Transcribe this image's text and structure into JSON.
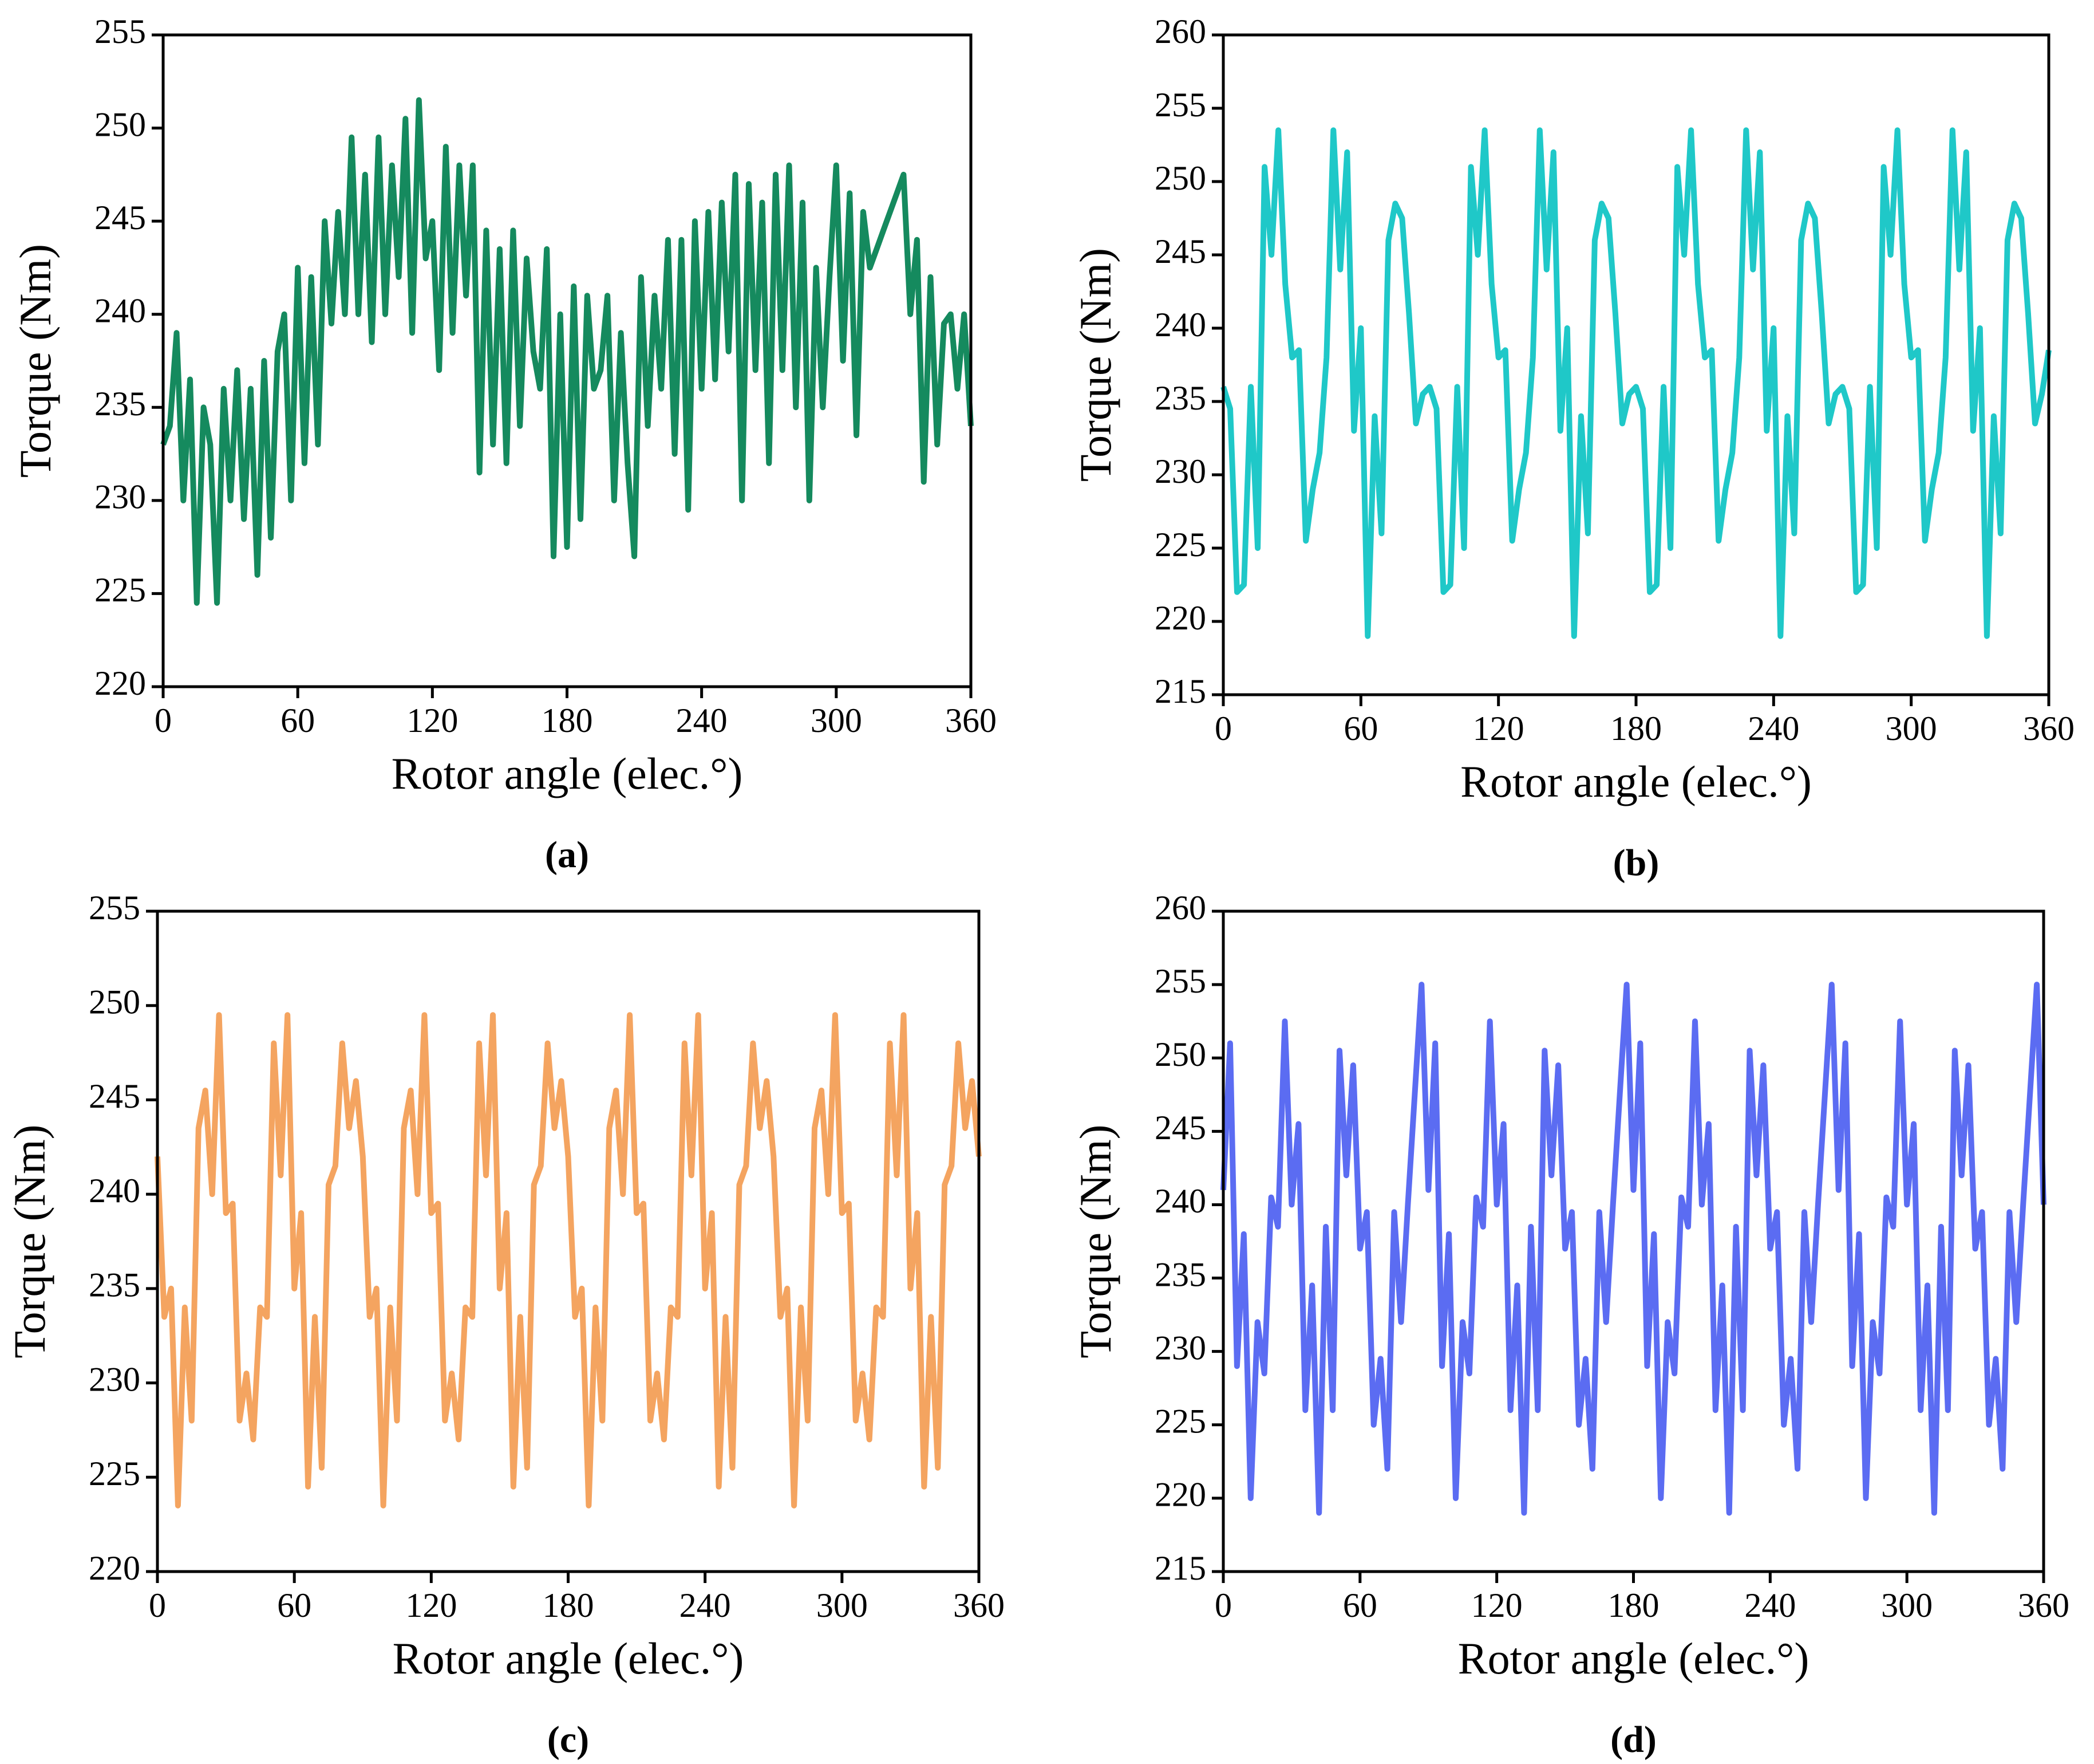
{
  "chart_data": [
    {
      "type": "line",
      "caption": "(a)",
      "xlabel": "Rotor angle (elec.°)",
      "ylabel": "Torque (Nm)",
      "xlim": [
        0,
        360
      ],
      "xticks": [
        0,
        60,
        120,
        180,
        240,
        300,
        360
      ],
      "ylim": [
        220,
        255
      ],
      "yticks": [
        220,
        225,
        230,
        235,
        240,
        245,
        250,
        255
      ],
      "x": [
        0,
        3,
        6,
        9,
        12,
        15,
        18,
        21,
        24,
        27,
        30,
        33,
        36,
        39,
        42,
        45,
        48,
        51,
        54,
        57,
        60,
        63,
        66,
        69,
        72,
        75,
        78,
        81,
        84,
        87,
        90,
        93,
        96,
        99,
        102,
        105,
        108,
        111,
        114,
        117,
        120,
        123,
        126,
        129,
        132,
        135,
        138,
        141,
        144,
        147,
        150,
        153,
        156,
        159,
        162,
        165,
        168,
        171,
        174,
        177,
        180,
        183,
        186,
        189,
        192,
        195,
        198,
        201,
        204,
        207,
        210,
        213,
        216,
        219,
        222,
        225,
        228,
        231,
        234,
        237,
        240,
        243,
        246,
        249,
        252,
        255,
        258,
        261,
        264,
        267,
        270,
        273,
        276,
        279,
        282,
        285,
        288,
        291,
        294,
        297,
        300,
        303,
        306,
        309,
        312,
        315,
        318,
        321,
        324,
        327,
        330,
        333,
        336,
        339,
        342,
        345,
        348,
        351,
        354,
        357,
        360
      ],
      "series": [
        {
          "color": "#158a5e",
          "values": [
            233,
            234,
            239,
            230,
            236.5,
            224.5,
            235,
            233,
            224.5,
            236,
            230,
            237,
            229,
            236,
            226,
            237.5,
            228,
            238,
            240,
            230,
            242.5,
            232,
            242,
            233,
            245,
            239.5,
            245.5,
            240,
            249.5,
            240,
            247.5,
            238.5,
            249.5,
            240,
            248,
            242,
            250.5,
            239,
            251.5,
            243,
            245,
            237,
            249,
            239,
            248,
            241,
            248,
            231.5,
            244.5,
            233,
            243.5,
            232,
            244.5,
            234,
            243,
            238,
            236,
            243.5,
            227,
            240,
            227.5,
            241.5,
            229,
            241,
            236,
            237,
            241,
            230,
            239,
            232,
            227,
            242,
            234,
            241,
            236,
            244,
            232.5,
            244,
            229.5,
            245,
            236,
            245.5,
            236.5,
            246,
            238,
            247.5,
            230,
            247,
            237,
            246,
            232,
            247.5,
            237,
            248,
            235,
            246,
            230,
            242.5,
            235,
            242,
            248,
            237.5,
            246.5,
            233.5,
            245.5,
            242.5,
            243.5,
            244.5,
            245.5,
            246.5,
            247.5,
            240,
            244,
            231,
            242,
            233,
            239.5,
            240,
            236,
            240,
            234
          ]
        }
      ]
    },
    {
      "type": "line",
      "caption": "(b)",
      "xlabel": "Rotor angle (elec.°)",
      "ylabel": "Torque (Nm)",
      "xlim": [
        0,
        360
      ],
      "xticks": [
        0,
        60,
        120,
        180,
        240,
        300,
        360
      ],
      "ylim": [
        215,
        260
      ],
      "yticks": [
        215,
        220,
        225,
        230,
        235,
        240,
        245,
        250,
        255,
        260
      ],
      "x": [
        0,
        3,
        6,
        9,
        12,
        15,
        18,
        21,
        24,
        27,
        30,
        33,
        36,
        39,
        42,
        45,
        48,
        51,
        54,
        57,
        60,
        63,
        66,
        69,
        72,
        75,
        78,
        81,
        84,
        87,
        90,
        93,
        96,
        99,
        102,
        105,
        108,
        111,
        114,
        117,
        120,
        123,
        126,
        129,
        132,
        135,
        138,
        141,
        144,
        147,
        150,
        153,
        156,
        159,
        162,
        165,
        168,
        171,
        174,
        177,
        180,
        183,
        186,
        189,
        192,
        195,
        198,
        201,
        204,
        207,
        210,
        213,
        216,
        219,
        222,
        225,
        228,
        231,
        234,
        237,
        240,
        243,
        246,
        249,
        252,
        255,
        258,
        261,
        264,
        267,
        270,
        273,
        276,
        279,
        282,
        285,
        288,
        291,
        294,
        297,
        300,
        303,
        306,
        309,
        312,
        315,
        318,
        321,
        324,
        327,
        330,
        333,
        336,
        339,
        342,
        345,
        348,
        351,
        354,
        357,
        360
      ],
      "series": [
        {
          "color": "#1fc8c8",
          "values": [
            236,
            234.5,
            222,
            222.5,
            236,
            225,
            251,
            245,
            253.5,
            243,
            238,
            238.5,
            225.5,
            229,
            231.5,
            238,
            253.5,
            244,
            252,
            233,
            240,
            219,
            234,
            226,
            246,
            248.5,
            247.5,
            241,
            233.5,
            235.5,
            236,
            234.5,
            222,
            222.5,
            236,
            225,
            251,
            245,
            253.5,
            243,
            238,
            238.5,
            225.5,
            229,
            231.5,
            238,
            253.5,
            244,
            252,
            233,
            240,
            219,
            234,
            226,
            246,
            248.5,
            247.5,
            241,
            233.5,
            235.5,
            236,
            234.5,
            222,
            222.5,
            236,
            225,
            251,
            245,
            253.5,
            243,
            238,
            238.5,
            225.5,
            229,
            231.5,
            238,
            253.5,
            244,
            252,
            233,
            240,
            219,
            234,
            226,
            246,
            248.5,
            247.5,
            241,
            233.5,
            235.5,
            236,
            234.5,
            222,
            222.5,
            236,
            225,
            251,
            245,
            253.5,
            243,
            238,
            238.5,
            225.5,
            229,
            231.5,
            238,
            253.5,
            244,
            252,
            233,
            240,
            219,
            234,
            226,
            246,
            248.5,
            247.5,
            241,
            233.5,
            235.5,
            238.5
          ]
        }
      ]
    },
    {
      "type": "line",
      "caption": "(c)",
      "xlabel": "Rotor angle (elec.°)",
      "ylabel": "Torque (Nm)",
      "xlim": [
        0,
        360
      ],
      "xticks": [
        0,
        60,
        120,
        180,
        240,
        300,
        360
      ],
      "ylim": [
        220,
        255
      ],
      "yticks": [
        220,
        225,
        230,
        235,
        240,
        245,
        250,
        255
      ],
      "x": [
        0,
        3,
        6,
        9,
        12,
        15,
        18,
        21,
        24,
        27,
        30,
        33,
        36,
        39,
        42,
        45,
        48,
        51,
        54,
        57,
        60,
        63,
        66,
        69,
        72,
        75,
        78,
        81,
        84,
        87,
        90,
        93,
        96,
        99,
        102,
        105,
        108,
        111,
        114,
        117,
        120,
        123,
        126,
        129,
        132,
        135,
        138,
        141,
        144,
        147,
        150,
        153,
        156,
        159,
        162,
        165,
        168,
        171,
        174,
        177,
        180,
        183,
        186,
        189,
        192,
        195,
        198,
        201,
        204,
        207,
        210,
        213,
        216,
        219,
        222,
        225,
        228,
        231,
        234,
        237,
        240,
        243,
        246,
        249,
        252,
        255,
        258,
        261,
        264,
        267,
        270,
        273,
        276,
        279,
        282,
        285,
        288,
        291,
        294,
        297,
        300,
        303,
        306,
        309,
        312,
        315,
        318,
        321,
        324,
        327,
        330,
        333,
        336,
        339,
        342,
        345,
        348,
        351,
        354,
        357,
        360
      ],
      "series": [
        {
          "color": "#f4a460",
          "values": [
            242,
            233.5,
            235,
            223.5,
            234,
            228,
            243.5,
            245.5,
            240,
            249.5,
            239,
            239.5,
            228,
            230.5,
            227,
            234,
            233.5,
            248,
            241,
            249.5,
            235,
            239,
            224.5,
            233.5,
            225.5,
            240.5,
            241.5,
            248,
            243.5,
            246,
            242,
            233.5,
            235,
            223.5,
            234,
            228,
            243.5,
            245.5,
            240,
            249.5,
            239,
            239.5,
            228,
            230.5,
            227,
            234,
            233.5,
            248,
            241,
            249.5,
            235,
            239,
            224.5,
            233.5,
            225.5,
            240.5,
            241.5,
            248,
            243.5,
            246,
            242,
            233.5,
            235,
            223.5,
            234,
            228,
            243.5,
            245.5,
            240,
            249.5,
            239,
            239.5,
            228,
            230.5,
            227,
            234,
            233.5,
            248,
            241,
            249.5,
            235,
            239,
            224.5,
            233.5,
            225.5,
            240.5,
            241.5,
            248,
            243.5,
            246,
            242,
            233.5,
            235,
            223.5,
            234,
            228,
            243.5,
            245.5,
            240,
            249.5,
            239,
            239.5,
            228,
            230.5,
            227,
            234,
            233.5,
            248,
            241,
            249.5,
            235,
            239,
            224.5,
            233.5,
            225.5,
            240.5,
            241.5,
            248,
            243.5,
            246,
            242
          ]
        }
      ]
    },
    {
      "type": "line",
      "caption": "(d)",
      "xlabel": "Rotor angle (elec.°)",
      "ylabel": "Torque (Nm)",
      "xlim": [
        0,
        360
      ],
      "xticks": [
        0,
        60,
        120,
        180,
        240,
        300,
        360
      ],
      "ylim": [
        215,
        260
      ],
      "yticks": [
        215,
        220,
        225,
        230,
        235,
        240,
        245,
        250,
        255,
        260
      ],
      "x": [
        0,
        3,
        6,
        9,
        12,
        15,
        18,
        21,
        24,
        27,
        30,
        33,
        36,
        39,
        42,
        45,
        48,
        51,
        54,
        57,
        60,
        63,
        66,
        69,
        72,
        75,
        78,
        81,
        84,
        87,
        90,
        93,
        96,
        99,
        102,
        105,
        108,
        111,
        114,
        117,
        120,
        123,
        126,
        129,
        132,
        135,
        138,
        141,
        144,
        147,
        150,
        153,
        156,
        159,
        162,
        165,
        168,
        171,
        174,
        177,
        180,
        183,
        186,
        189,
        192,
        195,
        198,
        201,
        204,
        207,
        210,
        213,
        216,
        219,
        222,
        225,
        228,
        231,
        234,
        237,
        240,
        243,
        246,
        249,
        252,
        255,
        258,
        261,
        264,
        267,
        270,
        273,
        276,
        279,
        282,
        285,
        288,
        291,
        294,
        297,
        300,
        303,
        306,
        309,
        312,
        315,
        318,
        321,
        324,
        327,
        330,
        333,
        336,
        339,
        342,
        345,
        348,
        351,
        354,
        357,
        360
      ],
      "series": [
        {
          "color": "#5b6cf2",
          "values": [
            241,
            251,
            229,
            238,
            220,
            232,
            228.5,
            240.5,
            238.5,
            252.5,
            240,
            245.5,
            226,
            234.5,
            219,
            238.5,
            226,
            250.5,
            242,
            249.5,
            237,
            239.5,
            225,
            229.5,
            222,
            239.5,
            232,
            240,
            247.5,
            255,
            241,
            251,
            229,
            238,
            220,
            232,
            228.5,
            240.5,
            238.5,
            252.5,
            240,
            245.5,
            226,
            234.5,
            219,
            238.5,
            226,
            250.5,
            242,
            249.5,
            237,
            239.5,
            225,
            229.5,
            222,
            239.5,
            232,
            240,
            247.5,
            255,
            241,
            251,
            229,
            238,
            220,
            232,
            228.5,
            240.5,
            238.5,
            252.5,
            240,
            245.5,
            226,
            234.5,
            219,
            238.5,
            226,
            250.5,
            242,
            249.5,
            237,
            239.5,
            225,
            229.5,
            222,
            239.5,
            232,
            240,
            247.5,
            255,
            241,
            251,
            229,
            238,
            220,
            232,
            228.5,
            240.5,
            238.5,
            252.5,
            240,
            245.5,
            226,
            234.5,
            219,
            238.5,
            226,
            250.5,
            242,
            249.5,
            237,
            239.5,
            225,
            229.5,
            222,
            239.5,
            232,
            240,
            247.5,
            255,
            240
          ]
        }
      ]
    }
  ]
}
